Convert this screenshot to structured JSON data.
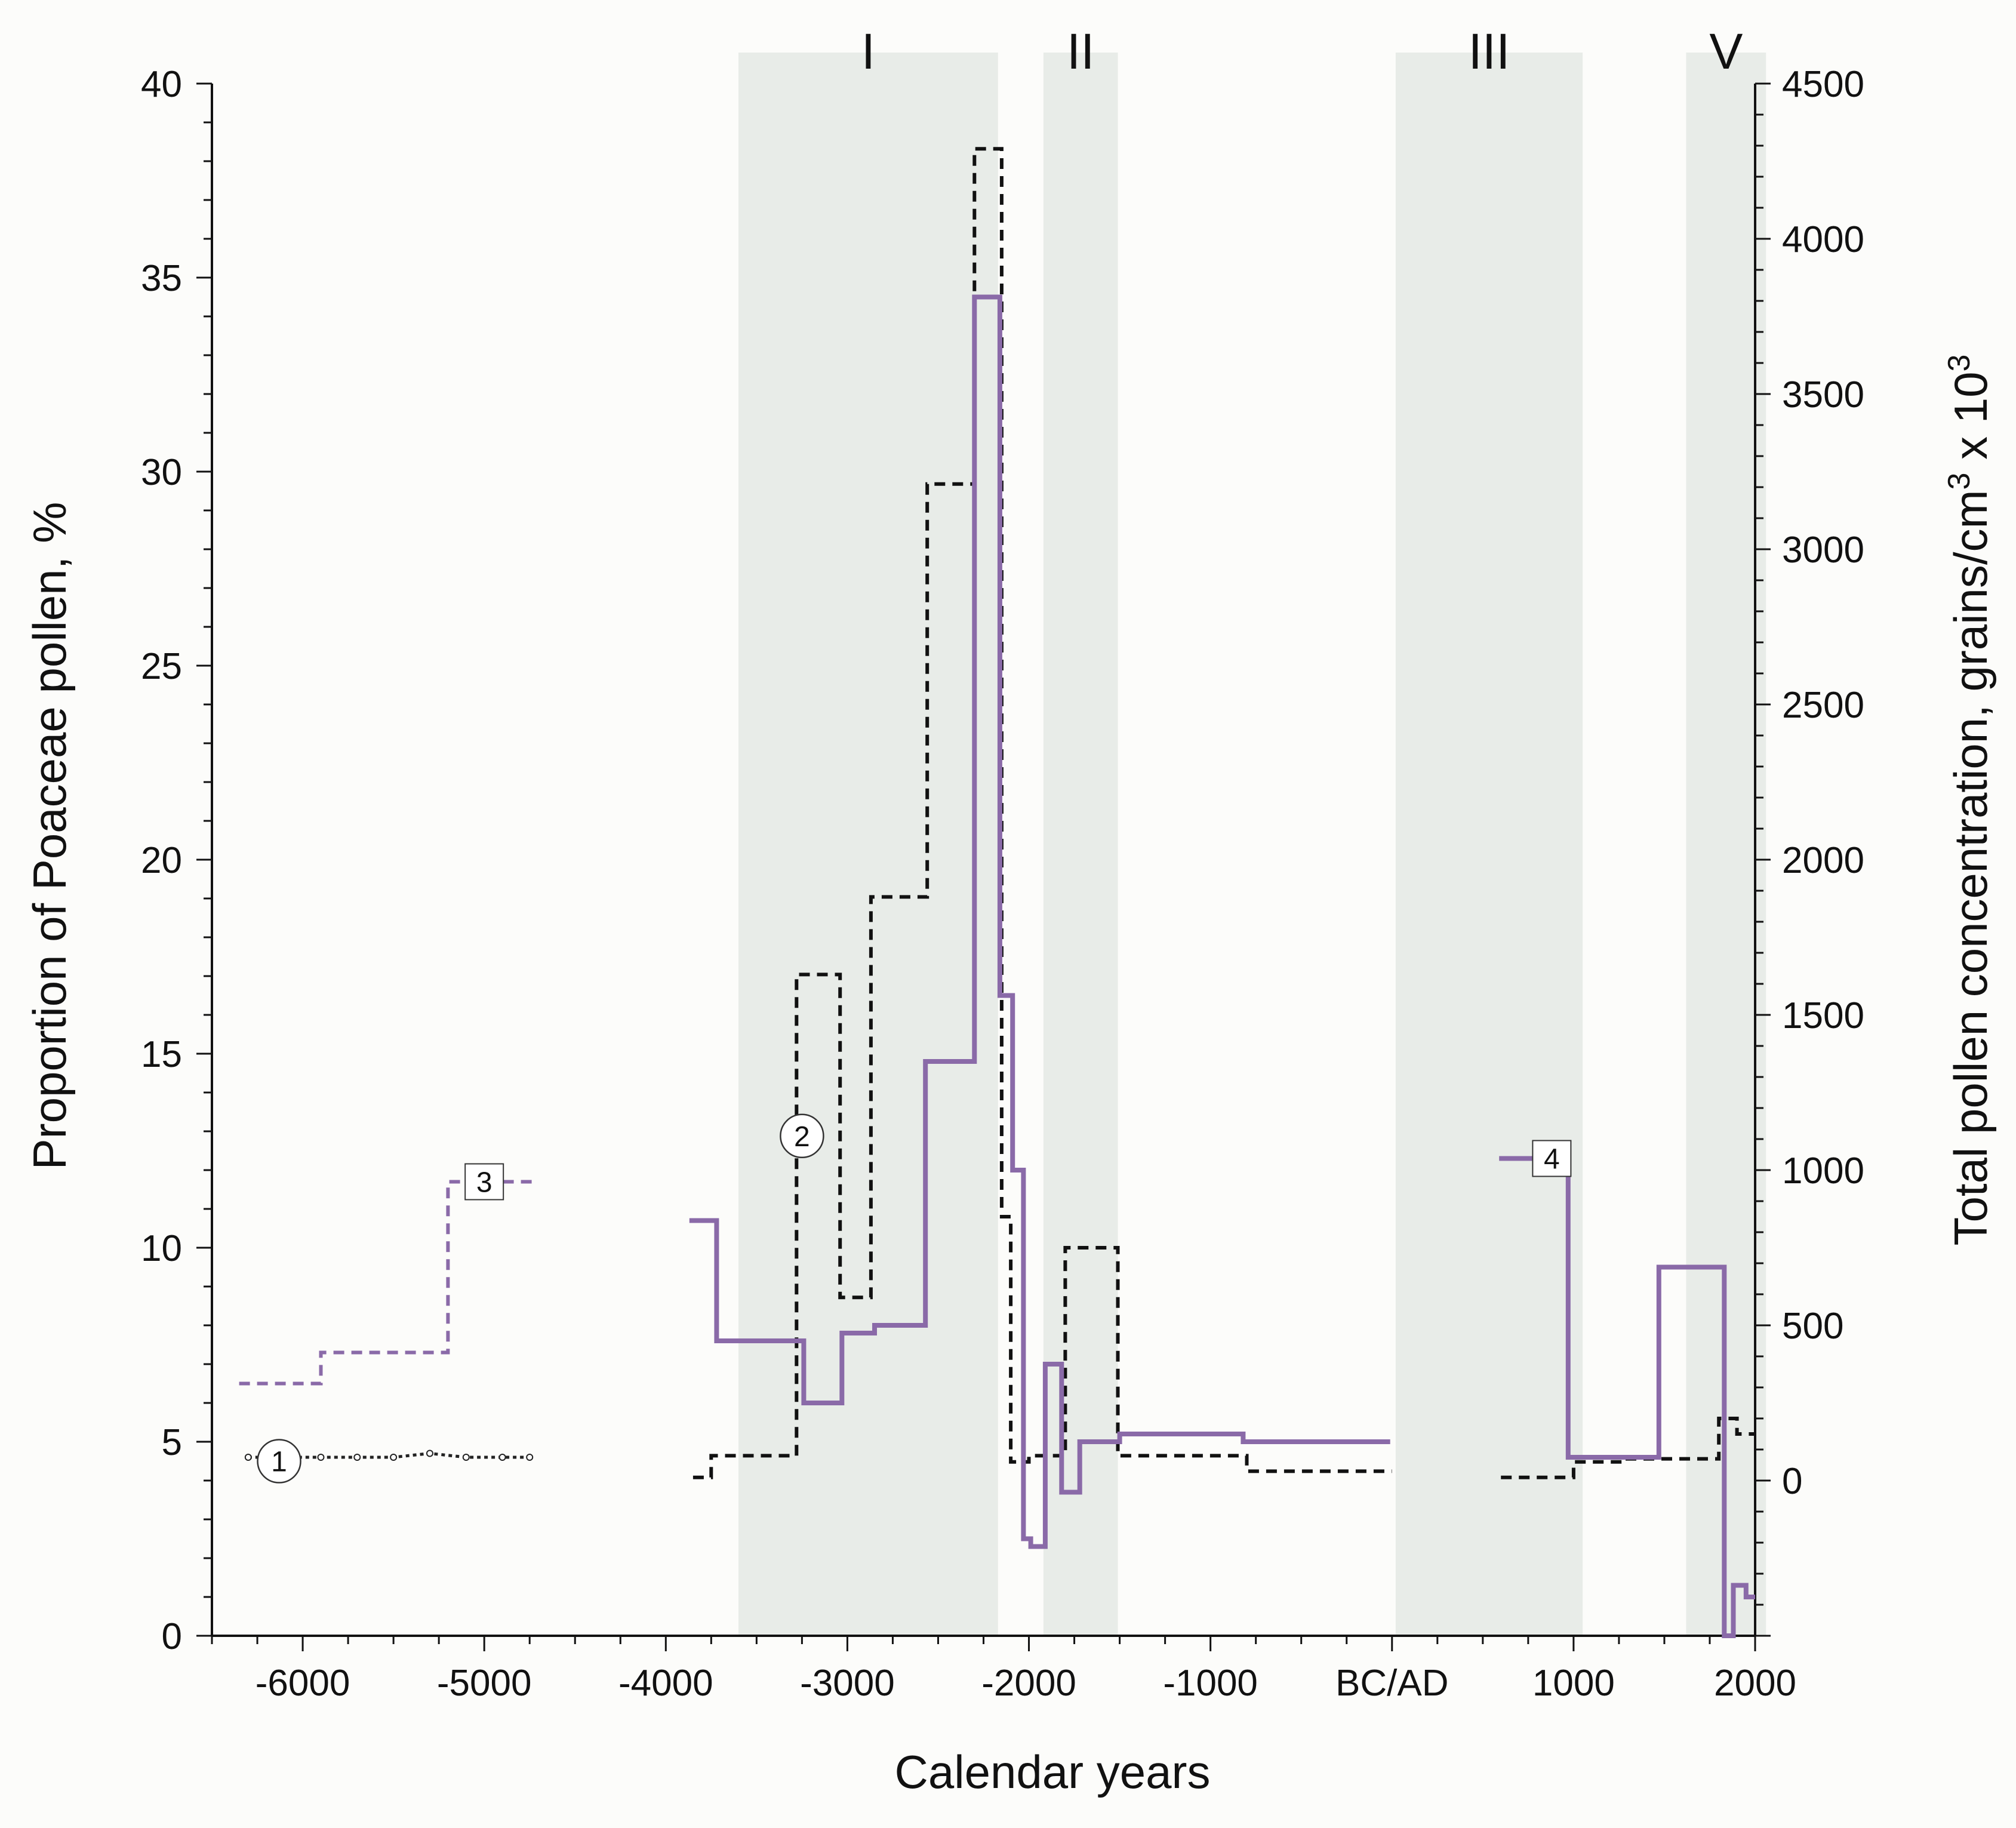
{
  "chart_data": {
    "type": "line",
    "xlabel": "Calendar years",
    "ylabel_left": "Proportion of Poaceae pollen, %",
    "ylabel_right_parts": [
      "Total pollen concentration, grains/cm",
      "3",
      " x 10",
      "3"
    ],
    "xlim": [
      -6500,
      2000
    ],
    "ylim_left": [
      0,
      40
    ],
    "ylim_right": [
      -500,
      4500
    ],
    "x_ticks": [
      {
        "value": -6000,
        "label": "-6000"
      },
      {
        "value": -5000,
        "label": "-5000"
      },
      {
        "value": -4000,
        "label": "-4000"
      },
      {
        "value": -3000,
        "label": "-3000"
      },
      {
        "value": -2000,
        "label": "-2000"
      },
      {
        "value": -1000,
        "label": "-1000"
      },
      {
        "value": 0,
        "label": "BC/AD"
      },
      {
        "value": 1000,
        "label": "1000"
      },
      {
        "value": 2000,
        "label": "2000"
      }
    ],
    "y_left_ticks": [
      {
        "value": 0,
        "label": "0"
      },
      {
        "value": 5,
        "label": "5"
      },
      {
        "value": 10,
        "label": "10"
      },
      {
        "value": 15,
        "label": "15"
      },
      {
        "value": 20,
        "label": "20"
      },
      {
        "value": 25,
        "label": "25"
      },
      {
        "value": 30,
        "label": "30"
      },
      {
        "value": 35,
        "label": "35"
      },
      {
        "value": 40,
        "label": "40"
      }
    ],
    "y_right_ticks": [
      {
        "value": 0,
        "label": "0"
      },
      {
        "value": 500,
        "label": "500"
      },
      {
        "value": 1000,
        "label": "1000"
      },
      {
        "value": 1500,
        "label": "1500"
      },
      {
        "value": 2000,
        "label": "2000"
      },
      {
        "value": 2500,
        "label": "2500"
      },
      {
        "value": 3000,
        "label": "3000"
      },
      {
        "value": 3500,
        "label": "3500"
      },
      {
        "value": 4000,
        "label": "4000"
      },
      {
        "value": 4500,
        "label": "4500"
      }
    ],
    "bands": [
      {
        "label": "I",
        "x0": -3600,
        "x1": -2170
      },
      {
        "label": "II",
        "x0": -1920,
        "x1": -1510
      },
      {
        "label": "III",
        "x0": 20,
        "x1": 1050
      },
      {
        "label": "V",
        "x0": 1620,
        "x1": 2060
      }
    ],
    "series": [
      {
        "marker": "1",
        "axis": "left",
        "style": "dotted",
        "color": "#222222",
        "points": [
          [
            -6300,
            4.6
          ],
          [
            -6100,
            4.6
          ],
          [
            -5900,
            4.6
          ],
          [
            -5700,
            4.6
          ],
          [
            -5500,
            4.6
          ],
          [
            -5300,
            4.7
          ],
          [
            -5100,
            4.6
          ],
          [
            -4900,
            4.6
          ],
          [
            -4750,
            4.6
          ]
        ],
        "marker_at": [
          -6130,
          4.5
        ]
      },
      {
        "marker": "2",
        "axis": "right",
        "style": "dashed",
        "color": "#111111",
        "points": [
          [
            -3850,
            10
          ],
          [
            -3750,
            10
          ],
          [
            -3750,
            80
          ],
          [
            -3280,
            80
          ],
          [
            -3280,
            1630
          ],
          [
            -3040,
            1630
          ],
          [
            -3040,
            590
          ],
          [
            -2870,
            590
          ],
          [
            -2870,
            1880
          ],
          [
            -2560,
            1880
          ],
          [
            -2560,
            3210
          ],
          [
            -2300,
            3210
          ],
          [
            -2300,
            4290
          ],
          [
            -2150,
            4290
          ],
          [
            -2150,
            850
          ],
          [
            -2100,
            850
          ],
          [
            -2100,
            60
          ],
          [
            -2000,
            60
          ],
          [
            -2000,
            80
          ],
          [
            -1800,
            80
          ],
          [
            -1800,
            750
          ],
          [
            -1510,
            750
          ],
          [
            -1510,
            80
          ],
          [
            -800,
            80
          ],
          [
            -800,
            30
          ],
          [
            -600,
            30
          ],
          [
            -600,
            30
          ],
          [
            -460,
            30
          ],
          [
            -460,
            30
          ],
          [
            -1,
            30
          ]
        ],
        "points_extra": [
          [
            600,
            10
          ],
          [
            1000,
            10
          ],
          [
            1000,
            60
          ],
          [
            1280,
            60
          ],
          [
            1280,
            70
          ],
          [
            1620,
            70
          ],
          [
            1620,
            70
          ],
          [
            1800,
            70
          ],
          [
            1800,
            200
          ],
          [
            1900,
            200
          ],
          [
            1900,
            150
          ],
          [
            2000,
            150
          ]
        ],
        "marker_at": [
          -3250,
          1110
        ]
      },
      {
        "marker": "3",
        "axis": "left",
        "style": "dashed",
        "color": "#8a6aa8",
        "points": [
          [
            -6350,
            6.5
          ],
          [
            -5900,
            6.5
          ],
          [
            -5900,
            7.3
          ],
          [
            -5200,
            7.3
          ],
          [
            -5200,
            11.7
          ],
          [
            -4700,
            11.7
          ]
        ],
        "marker_at": [
          -5000,
          11.7
        ]
      },
      {
        "marker": "4",
        "axis": "left",
        "style": "solid",
        "color": "#8a6aa8",
        "points": [
          [
            -3870,
            10.7
          ],
          [
            -3720,
            10.7
          ],
          [
            -3720,
            7.6
          ],
          [
            -3240,
            7.6
          ],
          [
            -3240,
            6.0
          ],
          [
            -3030,
            6.0
          ],
          [
            -3030,
            7.8
          ],
          [
            -2850,
            7.8
          ],
          [
            -2850,
            8.0
          ],
          [
            -2570,
            8.0
          ],
          [
            -2570,
            14.8
          ],
          [
            -2300,
            14.8
          ],
          [
            -2300,
            34.5
          ],
          [
            -2160,
            34.5
          ],
          [
            -2160,
            16.5
          ],
          [
            -2090,
            16.5
          ],
          [
            -2090,
            12.0
          ],
          [
            -2030,
            12.0
          ],
          [
            -2030,
            2.5
          ],
          [
            -1990,
            2.5
          ],
          [
            -1990,
            2.3
          ],
          [
            -1910,
            2.3
          ],
          [
            -1910,
            7.0
          ],
          [
            -1820,
            7.0
          ],
          [
            -1820,
            3.7
          ],
          [
            -1720,
            3.7
          ],
          [
            -1720,
            5.0
          ],
          [
            -1500,
            5.0
          ],
          [
            -1500,
            5.2
          ],
          [
            -820,
            5.2
          ],
          [
            -820,
            5.0
          ],
          [
            -10,
            5.0
          ]
        ],
        "points_extra": [
          [
            590,
            12.3
          ],
          [
            970,
            12.3
          ],
          [
            970,
            4.6
          ],
          [
            1470,
            4.6
          ],
          [
            1470,
            9.5
          ],
          [
            1830,
            9.5
          ],
          [
            1830,
            0.0
          ],
          [
            1880,
            0.0
          ],
          [
            1880,
            1.3
          ],
          [
            1950,
            1.3
          ],
          [
            1950,
            1.0
          ],
          [
            2000,
            1.0
          ]
        ],
        "marker_at": [
          880,
          12.3
        ]
      }
    ]
  }
}
